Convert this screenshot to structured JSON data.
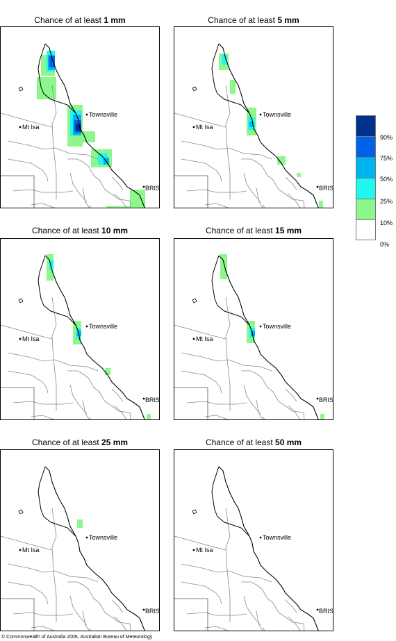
{
  "panels": [
    {
      "prefix": "Chance of at least ",
      "amount": "1 mm",
      "level": 0
    },
    {
      "prefix": "Chance of at least ",
      "amount": "5 mm",
      "level": 1
    },
    {
      "prefix": "Chance of at least ",
      "amount": "10 mm",
      "level": 2
    },
    {
      "prefix": "Chance of at least ",
      "amount": "15 mm",
      "level": 3
    },
    {
      "prefix": "Chance of at least ",
      "amount": "25 mm",
      "level": 4
    },
    {
      "prefix": "Chance of at least ",
      "amount": "50 mm",
      "level": 5
    }
  ],
  "places": {
    "townsville": "Townsville",
    "mt_isa": "Mt Isa",
    "bris": "BRIS"
  },
  "legend": {
    "colors": [
      "#00318c",
      "#0063e7",
      "#00b5ef",
      "#21f7ef",
      "#8cf78c",
      "#ffffff"
    ],
    "labels": [
      "90%",
      "75%",
      "50%",
      "25%",
      "10%",
      "0%"
    ]
  },
  "copyright": "© Commonwealth of Australia 2006, Australian Bureau of Meteorology"
}
